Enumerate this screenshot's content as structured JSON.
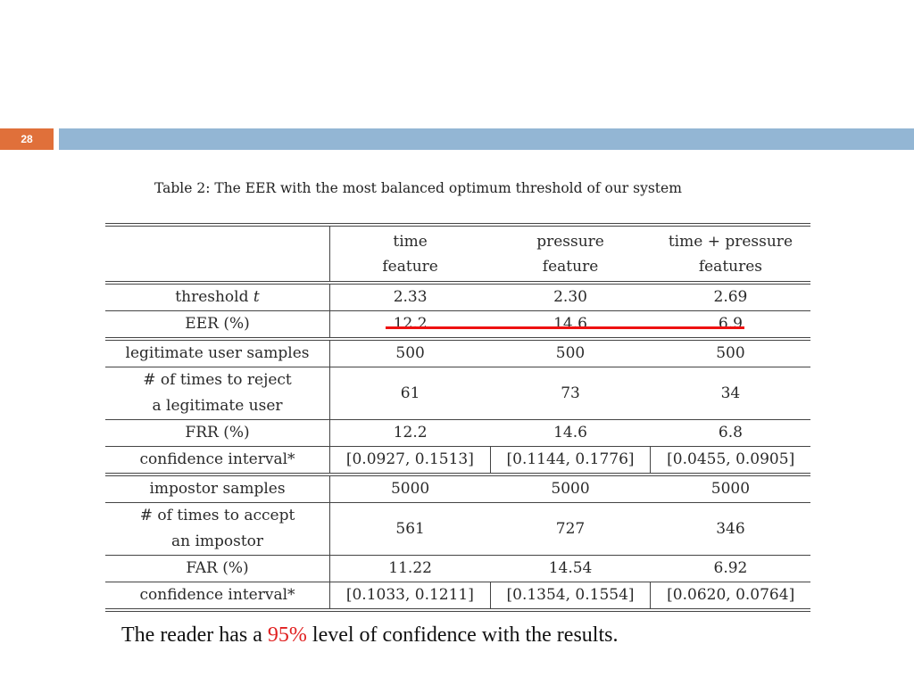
{
  "slide": {
    "number": "28",
    "accent_color": "#e0703a",
    "bar_color": "#93b6d4"
  },
  "table": {
    "caption": "Table 2: The EER with the most balanced optimum threshold of our system",
    "columns": [
      {
        "line1": "time",
        "line2": "feature"
      },
      {
        "line1": "pressure",
        "line2": "feature"
      },
      {
        "line1": "time + pressure",
        "line2": "features"
      }
    ],
    "rows": {
      "threshold": {
        "label": "threshold t",
        "values": [
          "2.33",
          "2.30",
          "2.69"
        ]
      },
      "eer": {
        "label": "EER (%)",
        "values": [
          "12.2",
          "14.6",
          "6.9"
        ]
      },
      "legit_samples": {
        "label": "legitimate user samples",
        "values": [
          "500",
          "500",
          "500"
        ]
      },
      "reject_times": {
        "label_line1": "# of times to reject",
        "label_line2": "a legitimate user",
        "values": [
          "61",
          "73",
          "34"
        ]
      },
      "frr": {
        "label": "FRR (%)",
        "values": [
          "12.2",
          "14.6",
          "6.8"
        ]
      },
      "frr_ci": {
        "label": "confidence interval*",
        "values": [
          "[0.0927, 0.1513]",
          "[0.1144, 0.1776]",
          "[0.0455, 0.0905]"
        ]
      },
      "impostor_samples": {
        "label": "impostor samples",
        "values": [
          "5000",
          "5000",
          "5000"
        ]
      },
      "accept_times": {
        "label_line1": "# of times to accept",
        "label_line2": "an impostor",
        "values": [
          "561",
          "727",
          "346"
        ]
      },
      "far": {
        "label": "FAR (%)",
        "values": [
          "11.22",
          "14.54",
          "6.92"
        ]
      },
      "far_ci": {
        "label": "confidence interval*",
        "values": [
          "[0.1033, 0.1211]",
          "[0.1354, 0.1554]",
          "[0.0620, 0.0764]"
        ]
      }
    },
    "highlight_color": "#ee1111"
  },
  "footer": {
    "before": "The reader has a ",
    "highlight": "95%",
    "after": " level of confidence with the results.",
    "highlight_color": "#e02020"
  }
}
